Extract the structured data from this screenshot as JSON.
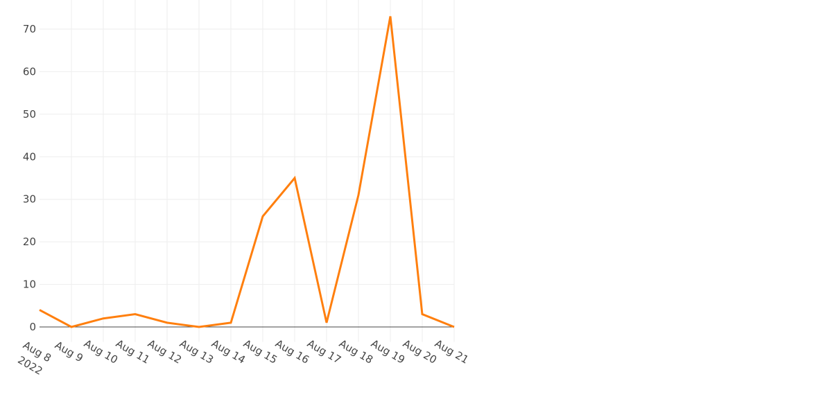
{
  "chart_data": {
    "type": "line",
    "title": "",
    "xlabel": "",
    "ylabel": "",
    "x": [
      "2022-08-08",
      "2022-08-09",
      "2022-08-10",
      "2022-08-11",
      "2022-08-12",
      "2022-08-13",
      "2022-08-14",
      "2022-08-15",
      "2022-08-16",
      "2022-08-17",
      "2022-08-18",
      "2022-08-19",
      "2022-08-20",
      "2022-08-21"
    ],
    "x_tick_labels": [
      "Aug 8",
      "Aug 9",
      "Aug 10",
      "Aug 11",
      "Aug 12",
      "Aug 13",
      "Aug 14",
      "Aug 15",
      "Aug 16",
      "Aug 17",
      "Aug 18",
      "Aug 19",
      "Aug 20",
      "Aug 21"
    ],
    "x_tick_year_label": "2022",
    "series": [
      {
        "values": [
          4,
          0,
          2,
          3,
          1,
          0,
          1,
          26,
          35,
          1,
          31,
          73,
          3,
          0
        ],
        "color": "#ff7f0e"
      }
    ],
    "yticks": [
      0,
      10,
      20,
      30,
      40,
      50,
      60,
      70
    ],
    "ylim": [
      -3.5,
      75
    ],
    "xlim": [
      "2022-08-08",
      "2022-08-21"
    ],
    "grid": true,
    "legend": "none"
  }
}
